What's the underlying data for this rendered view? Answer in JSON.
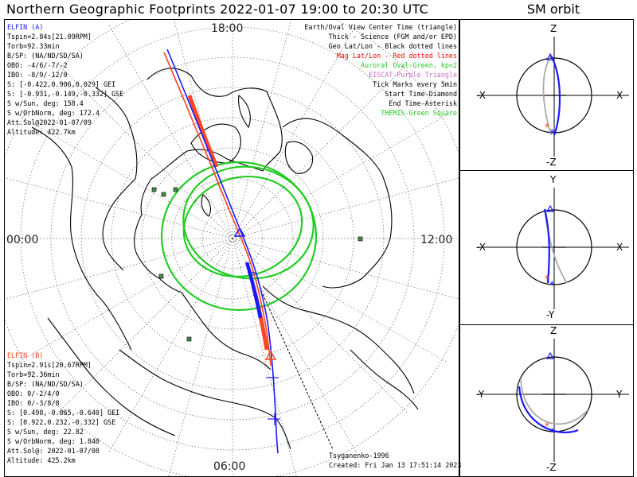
{
  "title": "Northern Geographic Footprints 2022-01-07 19:00 to 20:30 UTC",
  "sm_title": "SM orbit",
  "map": {
    "time_labels": {
      "top": "18:00",
      "left": "00:00",
      "right": "12:00",
      "bottom": "06:00"
    }
  },
  "elfin_a": {
    "name": "ELFIN (A)",
    "color": "#1a1aff",
    "lines": [
      "Tspin=2.84s[21.09RPM]",
      "Torb=92.33min",
      "B/SP: (NA/ND/SD/SA)",
      "OBO: -4/6/-7/-2",
      "IBO: -8/9/-12/0",
      "S: [-0.422,0.906,0.029] GEI",
      "S: [-0.931,-0.149,-0.332] GSE",
      "S w/Sun, deg: 158.4",
      "S w/OrbNorm, deg: 172.4",
      "Att.Sol@2022-01-07/09",
      "Altitude: 422.7km"
    ]
  },
  "elfin_b": {
    "name": "ELFIN (B)",
    "color": "#ff4422",
    "lines": [
      "Tspin=2.91s[20.67RPM]",
      "Torb=92.36min",
      "B/SP: (NA/ND/SD/SA)",
      "OBO: 0/-2/4/0",
      "IBO: 0/-3/8/8",
      "S: [0.498,-0.865,-0.640] GEI",
      "S: [0.922,0.232,-0.332] GSE",
      "S w/Sun, deg: 22.82",
      "S w/OrbNorm, deg: 1.840",
      "Att.Sol@: 2022-01-07/08",
      "Altitude: 425.2km"
    ]
  },
  "legend": [
    {
      "text": "Earth/Oval View Center Time (triangle)",
      "color": "#000000"
    },
    {
      "text": "Thick - Science (FGM and/or EPD)",
      "color": "#000000"
    },
    {
      "text": "Geo Lat/Lon - Black dotted lines",
      "color": "#000000"
    },
    {
      "text": "Mag Lat/Lon - Red dotted lines",
      "color": "#ff0000"
    },
    {
      "text": "Auroral Oval-Green, kp=2",
      "color": "#22cc22"
    },
    {
      "text": "EISCAT-Purple Triangle",
      "color": "#cc66cc"
    },
    {
      "text": "Tick Marks every 5min",
      "color": "#000000"
    },
    {
      "text": "Start Time-Diamond",
      "color": "#000000"
    },
    {
      "text": "End Time-Asterisk",
      "color": "#000000"
    },
    {
      "text": "THEMIS-Green Square",
      "color": "#22cc22"
    }
  ],
  "footer": {
    "model": "Tsyganenko-1996",
    "created": "Created: Fri Jan 13 17:51:14 2023"
  },
  "sm_panels": [
    {
      "top": "Z",
      "left": "-X",
      "right": "X",
      "bottom": "-Z"
    },
    {
      "top": "Y",
      "left": "-X",
      "right": "X",
      "bottom": "-Y"
    },
    {
      "top": "Z",
      "left": "-Y",
      "right": "Y",
      "bottom": "-Z"
    }
  ]
}
